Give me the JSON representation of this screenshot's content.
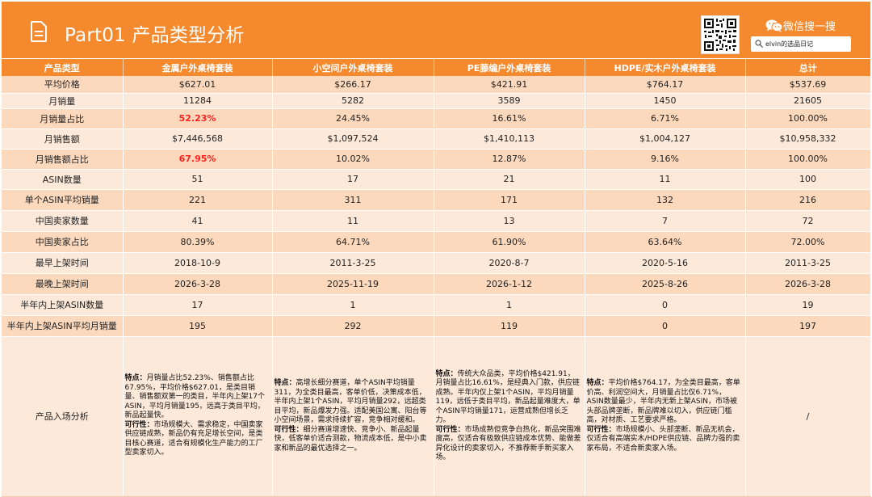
{
  "header": {
    "title": "Part01  产品类型分析",
    "wechat_label": "微信搜一搜",
    "search_value": "elvin的选品日记"
  },
  "colors": {
    "accent": "#f5892e",
    "row_dark": "#fcd9bd",
    "row_light": "#fde9da",
    "highlight": "#ff2020"
  },
  "columns": [
    "产品类型",
    "金属户外桌椅套装",
    "小空间户外桌椅套装",
    "PE藤编户外桌椅套装",
    "HDPE/实木户外桌椅套装",
    "总计"
  ],
  "rows": [
    {
      "label": "平均价格",
      "values": [
        "$627.01",
        "$266.17",
        "$421.91",
        "$764.17",
        "$537.69"
      ]
    },
    {
      "label": "月销量",
      "values": [
        "11284",
        "5282",
        "3589",
        "1450",
        "21605"
      ]
    },
    {
      "label": "月销量占比",
      "values": [
        "52.23%",
        "24.45%",
        "16.61%",
        "6.71%",
        "100.00%"
      ]
    },
    {
      "label": "月销售额",
      "values": [
        "$7,446,568",
        "$1,097,524",
        "$1,410,113",
        "$1,004,127",
        "$10,958,332"
      ]
    },
    {
      "label": "月销售额占比",
      "values": [
        "67.95%",
        "10.02%",
        "12.87%",
        "9.16%",
        "100.00%"
      ]
    },
    {
      "label": "ASIN数量",
      "values": [
        "51",
        "17",
        "21",
        "11",
        "100"
      ]
    },
    {
      "label": "单个ASIN平均销量",
      "values": [
        "221",
        "311",
        "171",
        "132",
        "216"
      ]
    },
    {
      "label": "中国卖家数量",
      "values": [
        "41",
        "11",
        "13",
        "7",
        "72"
      ]
    },
    {
      "label": "中国卖家占比",
      "values": [
        "80.39%",
        "64.71%",
        "61.90%",
        "63.64%",
        "72.00%"
      ]
    },
    {
      "label": "最早上架时间",
      "values": [
        "2018-10-9",
        "2011-3-25",
        "2020-8-7",
        "2020-5-16",
        "2011-3-25"
      ]
    },
    {
      "label": "最晚上架时间",
      "values": [
        "2026-3-28",
        "2025-11-19",
        "2026-1-12",
        "2025-8-26",
        "2026-3-28"
      ]
    },
    {
      "label": "半年内上架ASIN数量",
      "values": [
        "17",
        "1",
        "1",
        "0",
        "19"
      ]
    },
    {
      "label": "半年内上架ASIN平均月销量",
      "values": [
        "195",
        "292",
        "119",
        "0",
        "197"
      ]
    }
  ],
  "analysis": {
    "label": "产品入场分析",
    "feature_tag": "特点：",
    "feasibility_tag": "可行性：",
    "cells": [
      {
        "feature": "月销量占比52.23%、销售额占比67.95%，平均价格$627.01，是类目销量、销售额双第一的类目，半年内上架17个ASIN，平均月销量195，远高于类目平均，新品起量快。",
        "feasibility": "市场规模大、需求稳定，中国卖家供应链成熟，新品仍有充足增长空间，是类目核心赛道，适合有规模化生产能力的工厂型卖家切入。"
      },
      {
        "feature": "高增长细分赛道，单个ASIN平均销量311，为全类目最高，客单价低，决策成本低，半年内上架1个ASIN，平均月销量292，远超类目平均，新品爆发力强。适配美国公寓、阳台等小空间场景，需求持续扩容，竞争相对缓和。",
        "feasibility": "细分赛道增速快、竞争小、新品起量快，低客单价适合测款，物流成本低，是中小卖家和新品的最优选择之一。"
      },
      {
        "feature": "传统大众品类，平均价格$421.91，月销量占比16.61%，是经典入门款，供应链成熟。半年内仅上架1个ASIN，平均月销量119，远低于类目平均，新品起量难度大，单个ASIN平均销量171，运营成熟但增长乏力。",
        "feasibility": "市场成熟但竞争白热化，新品突围难度高，仅适合有极致供应链成本优势、能做差异化设计的卖家切入，不推荐新手新买家入场。"
      },
      {
        "feature": "平均价格$764.17，为全类目最高，客单价高、利润空间大，月销量占比仅6.71%，ASIN数量最少，半年内无新上架ASIN，市场被头部品牌垄断，新品牌难以切入，供应链门槛高，对材质、工艺要求严格。",
        "feasibility": "市场规模小、头部垄断、新品无机会，仅适合有高端实木/HDPE供应链、品牌力强的卖家布局，不适合新卖家入场。"
      },
      {
        "slash": "/"
      }
    ]
  }
}
